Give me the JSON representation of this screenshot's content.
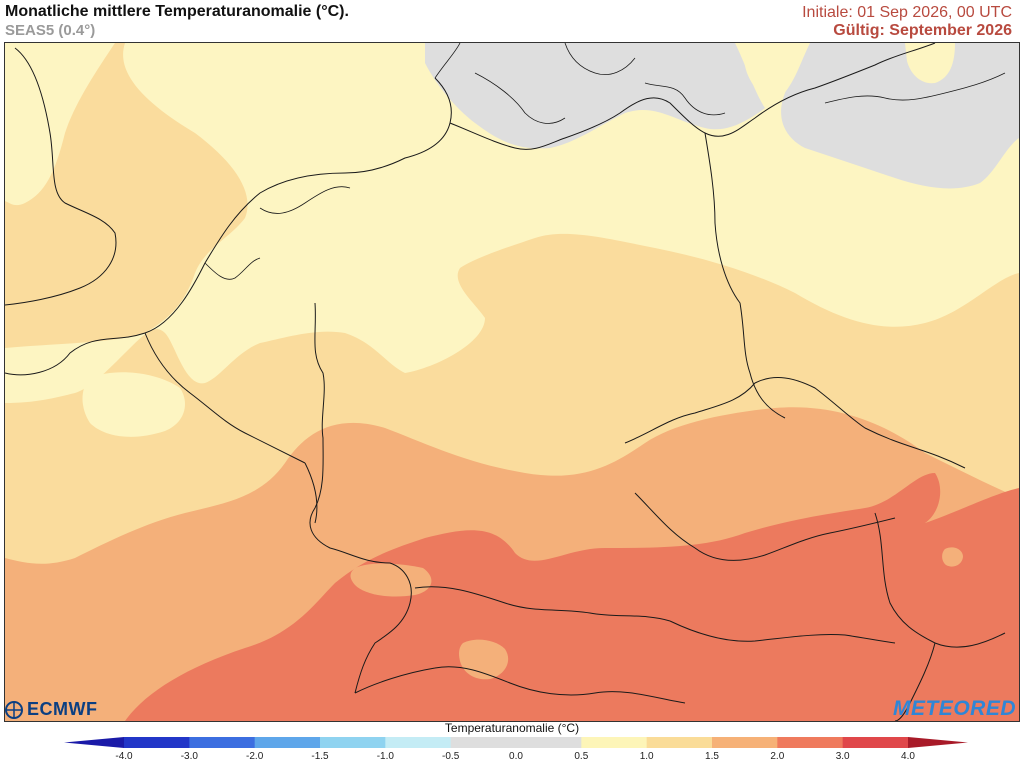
{
  "header": {
    "title": "Monatliche mittlere Temperaturanomalie (°C).",
    "subtitle": "SEAS5 (0.4°)",
    "initial": "Initiale: 01 Sep 2026, 00 UTC",
    "valid": "Gültig: September 2026"
  },
  "logos": {
    "left": "ECMWF",
    "right": "METEORED"
  },
  "colorbar": {
    "title": "Temperaturanomalie (°C)",
    "ticks": [
      "-4.0",
      "-3.0",
      "-2.0",
      "-1.5",
      "-1.0",
      "-0.5",
      "0.0",
      "0.5",
      "1.0",
      "1.5",
      "2.0",
      "3.0",
      "4.0"
    ],
    "colors": [
      "#2236c8",
      "#3c6ee0",
      "#5ea6ea",
      "#8fd3f0",
      "#c4ecf5",
      "#dedede",
      "#dedede",
      "#fdf5b8",
      "#fadc98",
      "#f6b177",
      "#ef7a5d",
      "#e0474a"
    ],
    "arrow_low": "#1a1aa8",
    "arrow_high": "#a81a28"
  },
  "map_colors": {
    "anomaly_0_0.5": "#dedede",
    "anomaly_0.5_1.0": "#fdf5c2",
    "anomaly_1.0_1.5": "#fadc9d",
    "anomaly_1.5_2.0": "#f4b07a",
    "anomaly_2.0_3.0": "#ec7a5e",
    "border_line": "#1a1a1a"
  }
}
